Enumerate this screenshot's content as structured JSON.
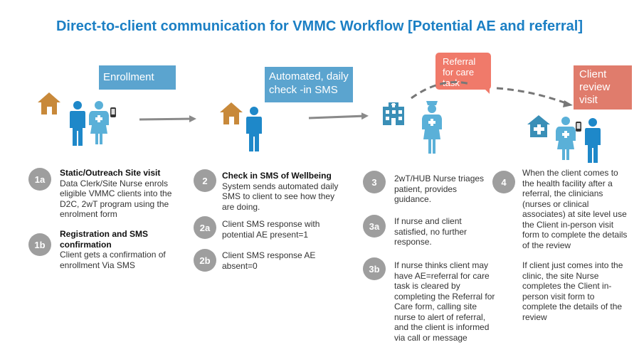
{
  "title": "Direct-to-client communication for VMMC Workflow [Potential AE and referral]",
  "labels": {
    "enrollment": "Enrollment",
    "automated_checkin": "Automated, daily check -in SMS",
    "referral_task": "Referral for care task",
    "client_review": "Client review visit"
  },
  "steps": [
    {
      "num": "1a",
      "heading": "Static/Outreach Site visit",
      "body": "Data Clerk/Site Nurse enrols eligible VMMC clients into the D2C, 2wT program using the enrolment form"
    },
    {
      "num": "1b",
      "heading": "Registration and SMS confirmation",
      "body": "Client gets a confirmation of enrollment Via SMS"
    },
    {
      "num": "2",
      "heading": "Check in SMS of Wellbeing",
      "body": "System sends automated daily SMS to client to see how  they are doing."
    },
    {
      "num": "2a",
      "body": "Client SMS response with potential  AE present=1"
    },
    {
      "num": "2b",
      "body": "Client SMS response AE absent=0"
    },
    {
      "num": "3",
      "body": "2wT/HUB Nurse triages patient, provides guidance."
    },
    {
      "num": "3a",
      "body": "If nurse and client satisfied, no further response."
    },
    {
      "num": "3b",
      "body": "If nurse thinks client may have AE=referral for care task is cleared by completing the Referral for Care form, calling site nurse to alert of referral, and the client is informed via call or message"
    },
    {
      "num": "4",
      "body": "When the client comes to the health facility after a referral, the clinicians (nurses or clinical associates) at site level use the Client in-person visit form to complete the details of the review",
      "body2": "If client just comes into the clinic, the site Nurse completes the Client in-person visit form to complete the details of the review"
    }
  ],
  "colors": {
    "title": "#1b7fc4",
    "box_blue": "#5ba4cf",
    "box_salmon": "#f07a6a",
    "icon_blue": "#1e88c9",
    "house": "#c8893a",
    "nurse": "#5ab0d8",
    "clinic": "#3a8fb7",
    "badge": "#9e9e9e",
    "arrow": "#8a8a8a"
  },
  "icons": [
    "house-icon",
    "client-icon",
    "nurse-icon",
    "phone-icon",
    "hospital-icon",
    "clinic-icon",
    "arrow-icon"
  ]
}
